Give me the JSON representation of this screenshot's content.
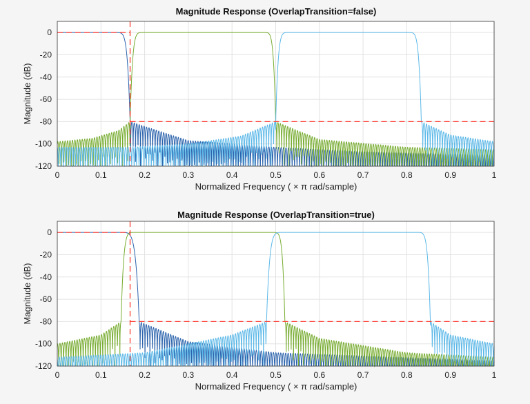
{
  "colors": {
    "lowpass": "#2a62ac",
    "bandpass": "#77ac30",
    "band3": "#5bb8e8",
    "mask": "#ff3b30",
    "grid": "#e2e2e2"
  },
  "chart_data": [
    {
      "type": "line",
      "title": "Magnitude Response (OverlapTransition=false)",
      "xlabel": "Normalized  Frequency  ( ×  π  rad/sample)",
      "ylabel": "Magnitude (dB)",
      "xlim": [
        0,
        1
      ],
      "ylim": [
        -120,
        10
      ],
      "xticks": [
        "0",
        "0.1",
        "0.2",
        "0.3",
        "0.4",
        "0.5",
        "0.6",
        "0.7",
        "0.8",
        "0.9",
        "1"
      ],
      "yticks": [
        "0",
        "-20",
        "-40",
        "-60",
        "-80",
        "-100",
        "-120"
      ],
      "grid": true,
      "mask": [
        [
          0,
          0
        ],
        [
          0.1667,
          0
        ],
        [
          0.1667,
          10
        ],
        [
          0.1667,
          -120
        ],
        [
          0.1667,
          -80
        ],
        [
          1,
          -80
        ]
      ],
      "series": [
        {
          "color_key": "lowpass",
          "passband": [
            0,
            0.13
          ],
          "edges": [
            [
              0.13,
              0.1667
            ]
          ],
          "stopbands": [
            [
              [
                0.1667,
                -80
              ],
              [
                0.3,
                -97
              ],
              [
                0.5,
                -103
              ],
              [
                0.7,
                -107
              ],
              [
                1,
                -110
              ]
            ]
          ]
        },
        {
          "color_key": "bandpass",
          "passband": [
            0.2,
            0.47
          ],
          "edges": [
            [
              0.2,
              0.1667
            ],
            [
              0.47,
              0.5
            ]
          ],
          "stopbands": [
            [
              [
                0,
                -98
              ],
              [
                0.08,
                -95
              ],
              [
                0.14,
                -88
              ],
              [
                0.1667,
                -80
              ]
            ],
            [
              [
                0.5,
                -80
              ],
              [
                0.6,
                -96
              ],
              [
                0.8,
                -103
              ],
              [
                1,
                -105
              ]
            ]
          ]
        },
        {
          "color_key": "band3",
          "passband": [
            0.533,
            0.8
          ],
          "edges": [
            [
              0.533,
              0.5
            ],
            [
              0.8,
              0.8333
            ]
          ],
          "stopbands": [
            [
              [
                0,
                -103
              ],
              [
                0.1667,
                -103
              ],
              [
                0.3,
                -100
              ],
              [
                0.42,
                -93
              ],
              [
                0.5,
                -80
              ]
            ],
            [
              [
                0.8333,
                -80
              ],
              [
                0.9,
                -92
              ],
              [
                1,
                -98
              ]
            ]
          ]
        }
      ]
    },
    {
      "type": "line",
      "title": "Magnitude Response (OverlapTransition=true)",
      "xlabel": "Normalized  Frequency  ( ×  π  rad/sample)",
      "ylabel": "Magnitude (dB)",
      "xlim": [
        0,
        1
      ],
      "ylim": [
        -120,
        10
      ],
      "xticks": [
        "0",
        "0.1",
        "0.2",
        "0.3",
        "0.4",
        "0.5",
        "0.6",
        "0.7",
        "0.8",
        "0.9",
        "1"
      ],
      "yticks": [
        "0",
        "-20",
        "-40",
        "-60",
        "-80",
        "-100",
        "-120"
      ],
      "grid": true,
      "mask": [
        [
          0,
          0
        ],
        [
          0.1667,
          0
        ],
        [
          0.1667,
          10
        ],
        [
          0.1667,
          -120
        ],
        [
          0.1667,
          -80
        ],
        [
          1,
          -80
        ]
      ],
      "series": [
        {
          "color_key": "lowpass",
          "passband": [
            0,
            0.14
          ],
          "edges": [
            [
              0.14,
              0.1875
            ]
          ],
          "stopbands": [
            [
              [
                0.1875,
                -80
              ],
              [
                0.3,
                -98
              ],
              [
                0.5,
                -108
              ],
              [
                1,
                -115
              ]
            ]
          ]
        },
        {
          "color_key": "bandpass",
          "passband": [
            0.18,
            0.49
          ],
          "edges": [
            [
              0.18,
              0.146
            ],
            [
              0.49,
              0.521
            ]
          ],
          "stopbands": [
            [
              [
                0,
                -100
              ],
              [
                0.1,
                -92
              ],
              [
                0.146,
                -80
              ]
            ],
            [
              [
                0.521,
                -80
              ],
              [
                0.6,
                -95
              ],
              [
                0.8,
                -108
              ],
              [
                1,
                -112
              ]
            ]
          ]
        },
        {
          "color_key": "band3",
          "passband": [
            0.52,
            0.82
          ],
          "edges": [
            [
              0.52,
              0.479
            ],
            [
              0.82,
              0.854
            ]
          ],
          "stopbands": [
            [
              [
                0,
                -112
              ],
              [
                0.2,
                -108
              ],
              [
                0.3,
                -100
              ],
              [
                0.4,
                -92
              ],
              [
                0.479,
                -80
              ]
            ],
            [
              [
                0.854,
                -80
              ],
              [
                0.9,
                -92
              ],
              [
                1,
                -100
              ]
            ]
          ]
        }
      ]
    }
  ]
}
